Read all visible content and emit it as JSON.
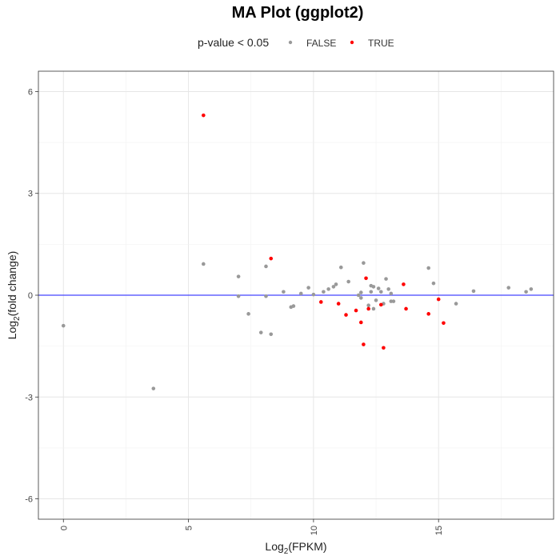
{
  "chart_data": {
    "type": "scatter",
    "title": "MA Plot (ggplot2)",
    "xlabel_prefix": "Log",
    "xlabel_sub": "2",
    "xlabel_suffix": "(FPKM)",
    "ylabel_prefix": "Log",
    "ylabel_sub": "2",
    "ylabel_suffix": "(fold change)",
    "legend": {
      "title": "p-value < 0.05",
      "position": "top",
      "entries": [
        {
          "label": "FALSE",
          "color": "#999999"
        },
        {
          "label": "TRUE",
          "color": "#ff0000"
        }
      ]
    },
    "xlim": [
      -1,
      19.6
    ],
    "ylim": [
      -6.6,
      6.6
    ],
    "xticks": [
      0,
      5,
      10,
      15
    ],
    "yticks": [
      -6,
      -3,
      0,
      3,
      6
    ],
    "grid": true,
    "hline": {
      "y": 0,
      "color": "#4444ff"
    },
    "series": [
      {
        "name": "FALSE",
        "color": "#999999",
        "x": [
          0.0,
          3.6,
          5.6,
          7.0,
          7.0,
          7.4,
          7.9,
          8.1,
          8.1,
          8.3,
          8.8,
          9.1,
          9.2,
          9.5,
          9.8,
          10.0,
          10.4,
          10.6,
          10.8,
          10.9,
          11.1,
          11.4,
          11.8,
          11.9,
          12.0,
          12.2,
          12.3,
          12.4,
          12.5,
          12.6,
          12.7,
          12.8,
          12.9,
          13.0,
          13.1,
          13.2,
          14.6,
          14.8,
          15.7,
          16.4,
          17.8,
          18.5,
          18.7,
          11.9,
          12.3,
          12.4,
          13.1
        ],
        "y": [
          -0.9,
          -2.75,
          0.92,
          0.55,
          -0.03,
          -0.55,
          -1.1,
          0.85,
          -0.03,
          -1.15,
          0.1,
          -0.35,
          -0.32,
          0.05,
          0.22,
          0.02,
          0.1,
          0.18,
          0.25,
          0.32,
          0.82,
          0.4,
          0.0,
          -0.08,
          0.95,
          -0.3,
          0.1,
          0.25,
          -0.15,
          0.2,
          0.1,
          -0.25,
          0.48,
          0.18,
          0.05,
          -0.18,
          0.8,
          0.35,
          -0.25,
          0.12,
          0.22,
          0.1,
          0.18,
          0.08,
          0.28,
          -0.4,
          -0.18
        ]
      },
      {
        "name": "TRUE",
        "color": "#ff0000",
        "x": [
          5.6,
          8.3,
          10.3,
          11.0,
          11.3,
          11.7,
          11.9,
          12.0,
          12.1,
          12.2,
          12.7,
          12.8,
          13.6,
          13.7,
          14.6,
          15.0,
          15.2
        ],
        "y": [
          5.3,
          1.08,
          -0.2,
          -0.25,
          -0.58,
          -0.45,
          -0.8,
          -1.45,
          0.5,
          -0.4,
          -0.28,
          -1.55,
          0.32,
          -0.4,
          -0.55,
          -0.12,
          -0.82
        ]
      }
    ]
  }
}
